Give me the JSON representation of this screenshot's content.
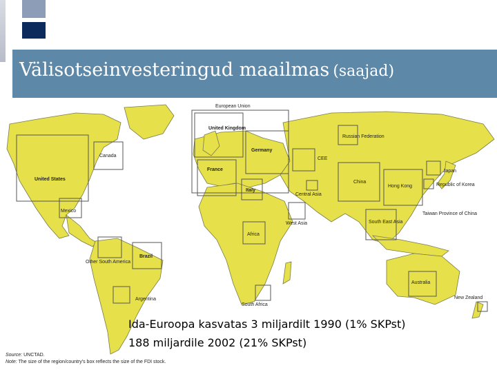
{
  "slide": {
    "title_main": "Välisotseinvesteringud maailmas",
    "title_sub": "(saajad)"
  },
  "map": {
    "labels": {
      "eu": "European Union",
      "uk": "United Kingdom",
      "germany": "Germany",
      "france": "France",
      "italy": "Italy",
      "russia": "Russian Federation",
      "cee": "CEE",
      "canada": "Canada",
      "usa": "United States",
      "mexico": "Mexico",
      "china": "China",
      "hongkong": "Hong Kong",
      "japan": "Japan",
      "korea": "Republic of Korea",
      "taiwan": "Taiwan Province of China",
      "central_asia": "Central Asia",
      "west_asia": "West Asia",
      "south_east_asia": "South East Asia",
      "africa": "Africa",
      "south_africa": "South Africa",
      "brazil": "Brazil",
      "other_sa": "Other South America",
      "argentina": "Argentina",
      "australia": "Australia",
      "new_zealand": "New Zealand"
    }
  },
  "caption": {
    "line1": "Ida-Euroopa kasvatas 3 miljardilt 1990 (1% SKPst)",
    "line2": "188 miljardile 2002 (21% SKPst)"
  },
  "source": {
    "source_label": "Source:",
    "source_value": "UNCTAD.",
    "note_label": "Note:",
    "note_value": "The size of the region/country's box reflects the size of the FDI stock."
  },
  "colors": {
    "land": "#e6e04a",
    "ocean": "#ffffff",
    "title_bar": "#5d88a8",
    "border": "#555555"
  }
}
